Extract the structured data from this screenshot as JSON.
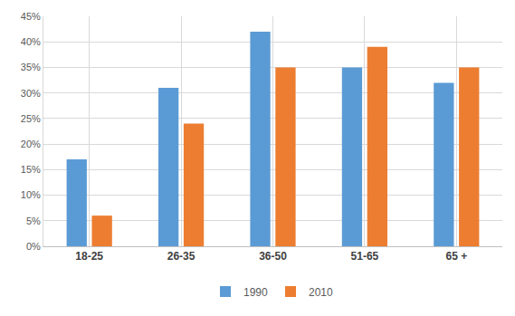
{
  "chart_data": {
    "type": "bar",
    "categories": [
      "18-25",
      "26-35",
      "36-50",
      "51-65",
      "65 +"
    ],
    "series": [
      {
        "name": "1990",
        "color": "#5b9bd5",
        "values": [
          17,
          31,
          42,
          35,
          32
        ]
      },
      {
        "name": "2010",
        "color": "#ed7d31",
        "values": [
          6,
          24,
          35,
          39,
          35
        ]
      }
    ],
    "ylim": [
      0,
      45
    ],
    "yticks": [
      {
        "value": 0,
        "label": "0%"
      },
      {
        "value": 5,
        "label": "5%"
      },
      {
        "value": 10,
        "label": "10%"
      },
      {
        "value": 15,
        "label": "15%"
      },
      {
        "value": 20,
        "label": "20%"
      },
      {
        "value": 25,
        "label": "25%"
      },
      {
        "value": 30,
        "label": "30%"
      },
      {
        "value": 35,
        "label": "35%"
      },
      {
        "value": 40,
        "label": "40%"
      },
      {
        "value": 45,
        "label": "45%"
      }
    ],
    "grid": true,
    "legend": "bottom"
  }
}
